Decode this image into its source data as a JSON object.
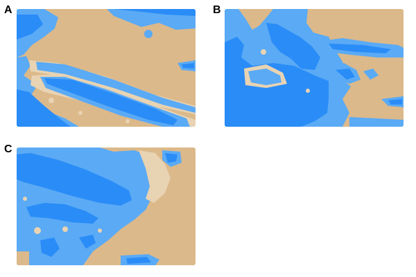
{
  "panels": [
    {
      "label": "A"
    },
    {
      "label": "B"
    },
    {
      "label": "C"
    }
  ],
  "colors": {
    "land": "#dcb98a",
    "land_light": "#e8d3b3",
    "shallow_water": "#5aaaf5",
    "deep_water": "#2a8cf7",
    "background": "#ffffff"
  }
}
